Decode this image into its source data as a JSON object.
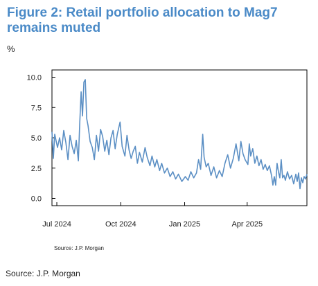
{
  "figure": {
    "title": "Figure 2: Retail portfolio allocation to Mag7 remains muted",
    "unit": "%",
    "source_inner": "Source: J.P. Morgan",
    "source_outer": "Source: J.P. Morgan"
  },
  "colors": {
    "title": "#4a8ac7",
    "line": "#5b8fc4",
    "axis": "#000000"
  },
  "chart_data": {
    "type": "line",
    "title": "Figure 2: Retail portfolio allocation to Mag7 remains muted",
    "xlabel": "",
    "ylabel": "%",
    "ylim": [
      -0.6,
      10.6
    ],
    "xlim": [
      "2024-06-24",
      "2025-06-26"
    ],
    "y_ticks": [
      "10.0",
      "7.5",
      "5.0",
      "2.5",
      "0.0"
    ],
    "x_tick_labels": [
      {
        "date": "2024-07-01",
        "label": "Jul 2024"
      },
      {
        "date": "2024-10-01",
        "label": "Oct 2024"
      },
      {
        "date": "2025-01-01",
        "label": "Jan 2025"
      },
      {
        "date": "2025-04-01",
        "label": "Apr 2025"
      }
    ],
    "grid": false,
    "legend": "none",
    "series": [
      {
        "points": [
          [
            "2024-06-24",
            5.5
          ],
          [
            "2024-06-26",
            3.3
          ],
          [
            "2024-06-28",
            5.3
          ],
          [
            "2024-07-02",
            4.2
          ],
          [
            "2024-07-05",
            5.0
          ],
          [
            "2024-07-08",
            4.0
          ],
          [
            "2024-07-11",
            5.6
          ],
          [
            "2024-07-14",
            4.6
          ],
          [
            "2024-07-17",
            3.2
          ],
          [
            "2024-07-20",
            5.2
          ],
          [
            "2024-07-23",
            4.3
          ],
          [
            "2024-07-26",
            3.7
          ],
          [
            "2024-07-29",
            4.8
          ],
          [
            "2024-08-01",
            3.1
          ],
          [
            "2024-08-03",
            6.2
          ],
          [
            "2024-08-05",
            8.8
          ],
          [
            "2024-08-07",
            6.8
          ],
          [
            "2024-08-09",
            9.6
          ],
          [
            "2024-08-11",
            9.8
          ],
          [
            "2024-08-13",
            6.6
          ],
          [
            "2024-08-15",
            6.0
          ],
          [
            "2024-08-18",
            4.7
          ],
          [
            "2024-08-21",
            4.2
          ],
          [
            "2024-08-24",
            3.2
          ],
          [
            "2024-08-27",
            5.2
          ],
          [
            "2024-08-30",
            3.9
          ],
          [
            "2024-09-02",
            5.7
          ],
          [
            "2024-09-05",
            5.1
          ],
          [
            "2024-09-08",
            3.9
          ],
          [
            "2024-09-11",
            4.8
          ],
          [
            "2024-09-14",
            3.6
          ],
          [
            "2024-09-17",
            5.0
          ],
          [
            "2024-09-20",
            5.6
          ],
          [
            "2024-09-23",
            4.1
          ],
          [
            "2024-09-26",
            5.3
          ],
          [
            "2024-09-30",
            6.3
          ],
          [
            "2024-10-03",
            4.3
          ],
          [
            "2024-10-07",
            3.5
          ],
          [
            "2024-10-10",
            5.2
          ],
          [
            "2024-10-13",
            4.0
          ],
          [
            "2024-10-16",
            3.3
          ],
          [
            "2024-10-19",
            3.9
          ],
          [
            "2024-10-22",
            4.3
          ],
          [
            "2024-10-25",
            2.9
          ],
          [
            "2024-10-28",
            3.8
          ],
          [
            "2024-11-01",
            3.0
          ],
          [
            "2024-11-05",
            4.2
          ],
          [
            "2024-11-08",
            3.4
          ],
          [
            "2024-11-12",
            2.7
          ],
          [
            "2024-11-15",
            3.5
          ],
          [
            "2024-11-19",
            2.6
          ],
          [
            "2024-11-22",
            3.2
          ],
          [
            "2024-11-26",
            2.3
          ],
          [
            "2024-11-29",
            2.9
          ],
          [
            "2024-12-03",
            2.1
          ],
          [
            "2024-12-07",
            2.5
          ],
          [
            "2024-12-11",
            1.8
          ],
          [
            "2024-12-15",
            2.2
          ],
          [
            "2024-12-19",
            1.6
          ],
          [
            "2024-12-23",
            2.0
          ],
          [
            "2024-12-28",
            1.4
          ],
          [
            "2025-01-02",
            1.8
          ],
          [
            "2025-01-06",
            1.5
          ],
          [
            "2025-01-10",
            2.2
          ],
          [
            "2025-01-14",
            1.7
          ],
          [
            "2025-01-18",
            2.1
          ],
          [
            "2025-01-21",
            3.2
          ],
          [
            "2025-01-24",
            2.4
          ],
          [
            "2025-01-27",
            5.3
          ],
          [
            "2025-01-29",
            3.4
          ],
          [
            "2025-02-01",
            2.6
          ],
          [
            "2025-02-04",
            2.9
          ],
          [
            "2025-02-08",
            1.9
          ],
          [
            "2025-02-12",
            2.6
          ],
          [
            "2025-02-16",
            1.7
          ],
          [
            "2025-02-20",
            2.3
          ],
          [
            "2025-02-24",
            1.8
          ],
          [
            "2025-02-28",
            2.9
          ],
          [
            "2025-03-04",
            3.6
          ],
          [
            "2025-03-08",
            2.5
          ],
          [
            "2025-03-12",
            3.3
          ],
          [
            "2025-03-16",
            4.5
          ],
          [
            "2025-03-20",
            3.1
          ],
          [
            "2025-03-23",
            4.7
          ],
          [
            "2025-03-26",
            3.7
          ],
          [
            "2025-03-29",
            3.2
          ],
          [
            "2025-04-02",
            2.8
          ],
          [
            "2025-04-04",
            4.5
          ],
          [
            "2025-04-06",
            3.5
          ],
          [
            "2025-04-09",
            4.1
          ],
          [
            "2025-04-12",
            2.9
          ],
          [
            "2025-04-15",
            3.5
          ],
          [
            "2025-04-18",
            2.7
          ],
          [
            "2025-04-21",
            3.2
          ],
          [
            "2025-04-24",
            2.4
          ],
          [
            "2025-04-27",
            2.8
          ],
          [
            "2025-04-30",
            2.3
          ],
          [
            "2025-05-03",
            2.7
          ],
          [
            "2025-05-06",
            1.9
          ],
          [
            "2025-05-08",
            1.1
          ],
          [
            "2025-05-10",
            1.8
          ],
          [
            "2025-05-12",
            1.1
          ],
          [
            "2025-05-14",
            2.9
          ],
          [
            "2025-05-16",
            2.2
          ],
          [
            "2025-05-18",
            1.7
          ],
          [
            "2025-05-20",
            3.2
          ],
          [
            "2025-05-22",
            1.7
          ],
          [
            "2025-05-24",
            1.9
          ],
          [
            "2025-05-26",
            1.5
          ],
          [
            "2025-05-29",
            2.2
          ],
          [
            "2025-06-01",
            1.6
          ],
          [
            "2025-06-04",
            1.9
          ],
          [
            "2025-06-07",
            1.2
          ],
          [
            "2025-06-10",
            2.0
          ],
          [
            "2025-06-12",
            1.4
          ],
          [
            "2025-06-14",
            2.1
          ],
          [
            "2025-06-16",
            0.8
          ],
          [
            "2025-06-18",
            1.7
          ],
          [
            "2025-06-20",
            1.3
          ],
          [
            "2025-06-22",
            1.8
          ],
          [
            "2025-06-24",
            1.6
          ],
          [
            "2025-06-26",
            2.0
          ]
        ]
      }
    ]
  }
}
